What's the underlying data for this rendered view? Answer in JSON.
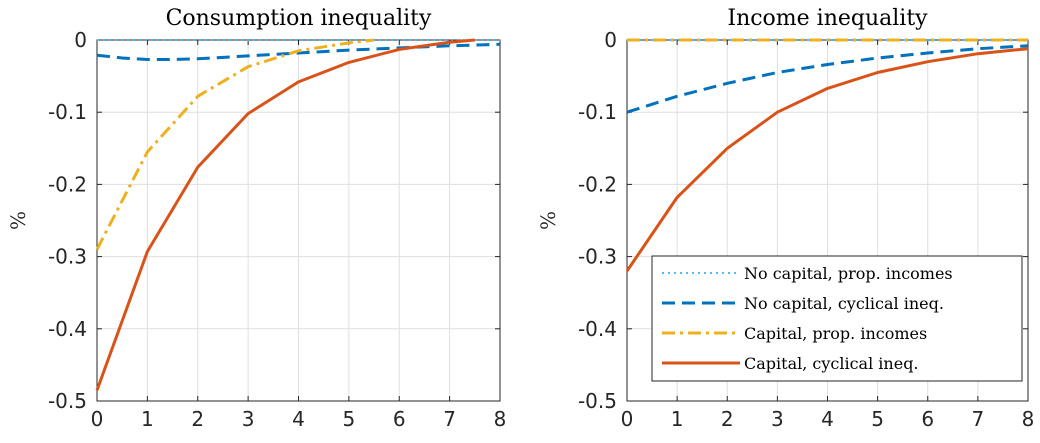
{
  "chart_data": [
    {
      "type": "line",
      "title": "Consumption inequality",
      "xlabel": "",
      "ylabel": "%",
      "xlim": [
        0,
        8
      ],
      "ylim": [
        -0.5,
        0
      ],
      "xticks": [
        "0",
        "1",
        "2",
        "3",
        "4",
        "5",
        "6",
        "7",
        "8"
      ],
      "yticks": [
        "0",
        "-0.1",
        "-0.2",
        "-0.3",
        "-0.4",
        "-0.5"
      ],
      "grid": true,
      "series": [
        {
          "name": "No capital, prop. incomes",
          "color": "#4DBEEE",
          "style": "dotted",
          "x": [
            0,
            8
          ],
          "y": [
            0,
            0
          ]
        },
        {
          "name": "No capital, cyclical ineq.",
          "color": "#0072BD",
          "style": "dashed",
          "x": [
            0,
            0.5,
            1,
            1.5,
            2,
            3,
            4,
            5,
            6,
            7,
            8
          ],
          "y": [
            -0.021,
            -0.025,
            -0.027,
            -0.027,
            -0.026,
            -0.022,
            -0.018,
            -0.014,
            -0.011,
            -0.008,
            -0.006
          ]
        },
        {
          "name": "Capital, prop. incomes",
          "color": "#EDB120",
          "style": "dashdot",
          "x": [
            0,
            1,
            2,
            3,
            4,
            5,
            5.5
          ],
          "y": [
            -0.29,
            -0.155,
            -0.078,
            -0.037,
            -0.015,
            -0.004,
            0
          ]
        },
        {
          "name": "Capital, cyclical ineq.",
          "color": "#D95319",
          "style": "solid",
          "x": [
            0,
            1,
            2,
            3,
            4,
            5,
            6,
            7,
            7.5
          ],
          "y": [
            -0.485,
            -0.293,
            -0.176,
            -0.102,
            -0.058,
            -0.031,
            -0.013,
            -0.003,
            0
          ]
        }
      ]
    },
    {
      "type": "line",
      "title": "Income inequality",
      "xlabel": "",
      "ylabel": "%",
      "xlim": [
        0,
        8
      ],
      "ylim": [
        -0.5,
        0
      ],
      "xticks": [
        "0",
        "1",
        "2",
        "3",
        "4",
        "5",
        "6",
        "7",
        "8"
      ],
      "yticks": [
        "0",
        "-0.1",
        "-0.2",
        "-0.3",
        "-0.4",
        "-0.5"
      ],
      "grid": true,
      "legend": "lower-right",
      "series": [
        {
          "name": "No capital, prop. incomes",
          "color": "#4DBEEE",
          "style": "dotted",
          "x": [
            0,
            8
          ],
          "y": [
            0,
            0
          ]
        },
        {
          "name": "No capital, cyclical ineq.",
          "color": "#0072BD",
          "style": "dashed",
          "x": [
            0,
            1,
            2,
            3,
            4,
            5,
            6,
            7,
            8
          ],
          "y": [
            -0.1,
            -0.078,
            -0.06,
            -0.045,
            -0.034,
            -0.025,
            -0.018,
            -0.012,
            -0.008
          ]
        },
        {
          "name": "Capital, prop. incomes",
          "color": "#EDB120",
          "style": "dashdot",
          "x": [
            0,
            8
          ],
          "y": [
            0,
            0
          ]
        },
        {
          "name": "Capital, cyclical ineq.",
          "color": "#D95319",
          "style": "solid",
          "x": [
            0,
            1,
            2,
            3,
            4,
            5,
            6,
            7,
            8
          ],
          "y": [
            -0.32,
            -0.218,
            -0.15,
            -0.1,
            -0.067,
            -0.045,
            -0.03,
            -0.019,
            -0.012
          ]
        }
      ]
    }
  ]
}
